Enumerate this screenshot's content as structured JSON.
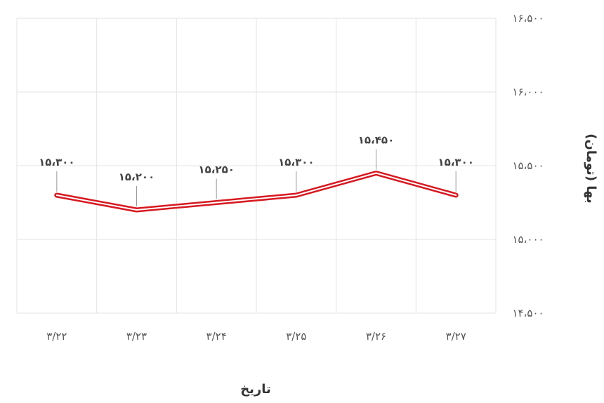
{
  "chart_data": {
    "type": "line",
    "title": "",
    "xlabel": "تاریخ",
    "ylabel": "بها (تومان)",
    "categories": [
      "۳/۲۲",
      "۳/۲۳",
      "۳/۲۴",
      "۳/۲۵",
      "۳/۲۶",
      "۳/۲۷"
    ],
    "series": [
      {
        "values": [
          15300,
          15200,
          15250,
          15300,
          15450,
          15300
        ],
        "labels": [
          "۱۵،۳۰۰",
          "۱۵،۲۰۰",
          "۱۵،۲۵۰",
          "۱۵،۳۰۰",
          "۱۵،۴۵۰",
          "۱۵،۳۰۰"
        ]
      }
    ],
    "ylim": [
      14500,
      16500
    ],
    "yticks": [
      14500,
      15000,
      15500,
      16000,
      16500
    ],
    "ytick_labels": [
      "۱۴،۵۰۰",
      "۱۵،۰۰۰",
      "۱۵،۵۰۰",
      "۱۶،۰۰۰",
      "۱۶،۵۰۰"
    ],
    "grid": true,
    "y_axis_position": "right",
    "line_color": "#d71920"
  }
}
